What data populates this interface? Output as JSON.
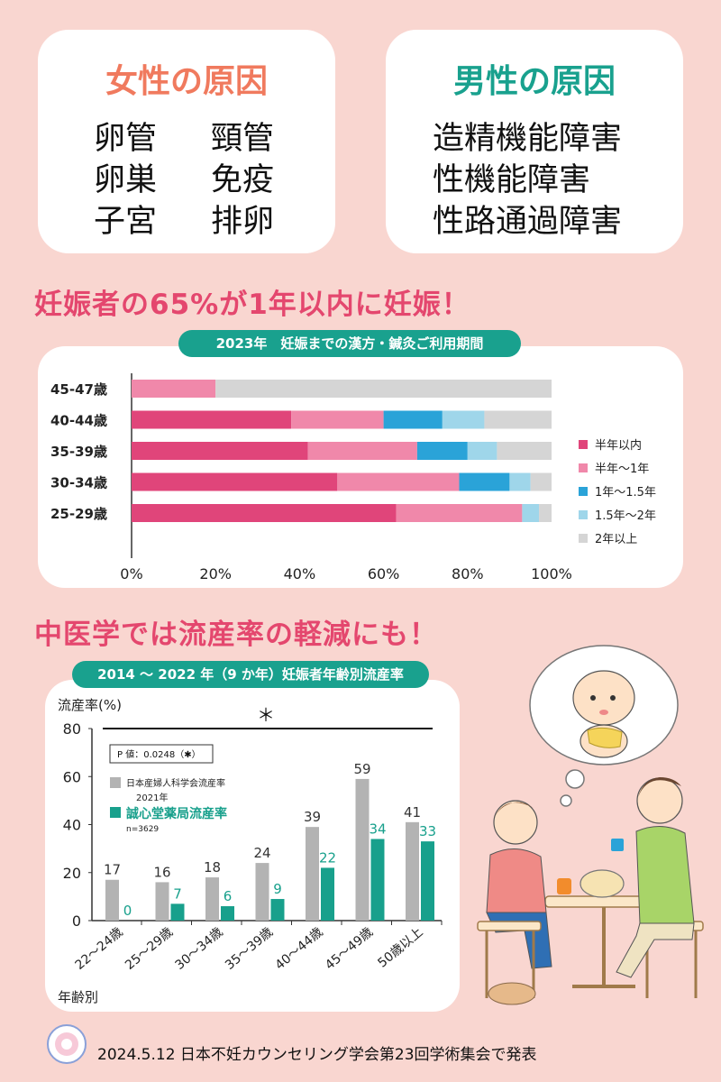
{
  "female": {
    "title": "女性の原因",
    "items": [
      "卵管",
      "頸管",
      "卵巣",
      "免疫",
      "子宮",
      "排卵"
    ]
  },
  "male": {
    "title": "男性の原因",
    "items": [
      "造精機能障害",
      "性機能障害",
      "性路通過障害"
    ]
  },
  "headline1": "妊娠者の65%が1年以内に妊娠！",
  "headline2": "中医学では流産率の軽減にも！",
  "footer": "2024.5.12 日本不妊カウンセリング学会第23回学術集会で発表",
  "colors": {
    "s1": "#e0457a",
    "s2": "#f088aa",
    "s3": "#2aa3d8",
    "s4": "#9fd6ea",
    "s5": "#d5d5d5",
    "teal": "#18a08c",
    "gray": "#b3b3b3",
    "pink": "#f07a5e"
  },
  "chart_data": [
    {
      "type": "bar",
      "orientation": "horizontal",
      "stacked": true,
      "title": "2023年　妊娠までの漢方・鍼灸ご利用期間",
      "categories": [
        "45-47歳",
        "40-44歳",
        "35-39歳",
        "30-34歳",
        "25-29歳"
      ],
      "series": [
        {
          "name": "半年以内",
          "values": [
            0,
            38,
            42,
            49,
            63
          ]
        },
        {
          "name": "半年～1年",
          "values": [
            20,
            22,
            26,
            29,
            30
          ]
        },
        {
          "name": "1年～1.5年",
          "values": [
            0,
            14,
            12,
            12,
            0
          ]
        },
        {
          "name": "1.5年～2年",
          "values": [
            0,
            10,
            7,
            5,
            4
          ]
        },
        {
          "name": "2年以上",
          "values": [
            80,
            16,
            13,
            5,
            3
          ]
        }
      ],
      "xticks": [
        "0%",
        "20%",
        "40%",
        "60%",
        "80%",
        "100%"
      ],
      "xlim": [
        0,
        100
      ],
      "legend": "right"
    },
    {
      "type": "bar",
      "title": "2014 ～ 2022 年（9 か年）妊娠者年齢別流産率",
      "ylabel": "流産率(%)",
      "xlabel": "年齢別",
      "ylim": [
        0,
        80
      ],
      "yticks": [
        0,
        20,
        40,
        60,
        80
      ],
      "categories": [
        "22～24歳",
        "25～29歳",
        "30～34歳",
        "35～39歳",
        "40～44歳",
        "45～49歳",
        "50歳以上"
      ],
      "series": [
        {
          "name": "日本産婦人科学会流産率",
          "values": [
            17,
            16,
            18,
            24,
            39,
            59,
            41
          ]
        },
        {
          "name": "誠心堂薬局流産率",
          "values": [
            0,
            7,
            6,
            9,
            22,
            34,
            33
          ]
        }
      ],
      "legend_notes": {
        "gray_year": "2021年",
        "teal_n": "n=3629"
      },
      "pvalue": "P 値：0.0248（✱）",
      "significance": "＊",
      "legend": "top-left"
    }
  ]
}
